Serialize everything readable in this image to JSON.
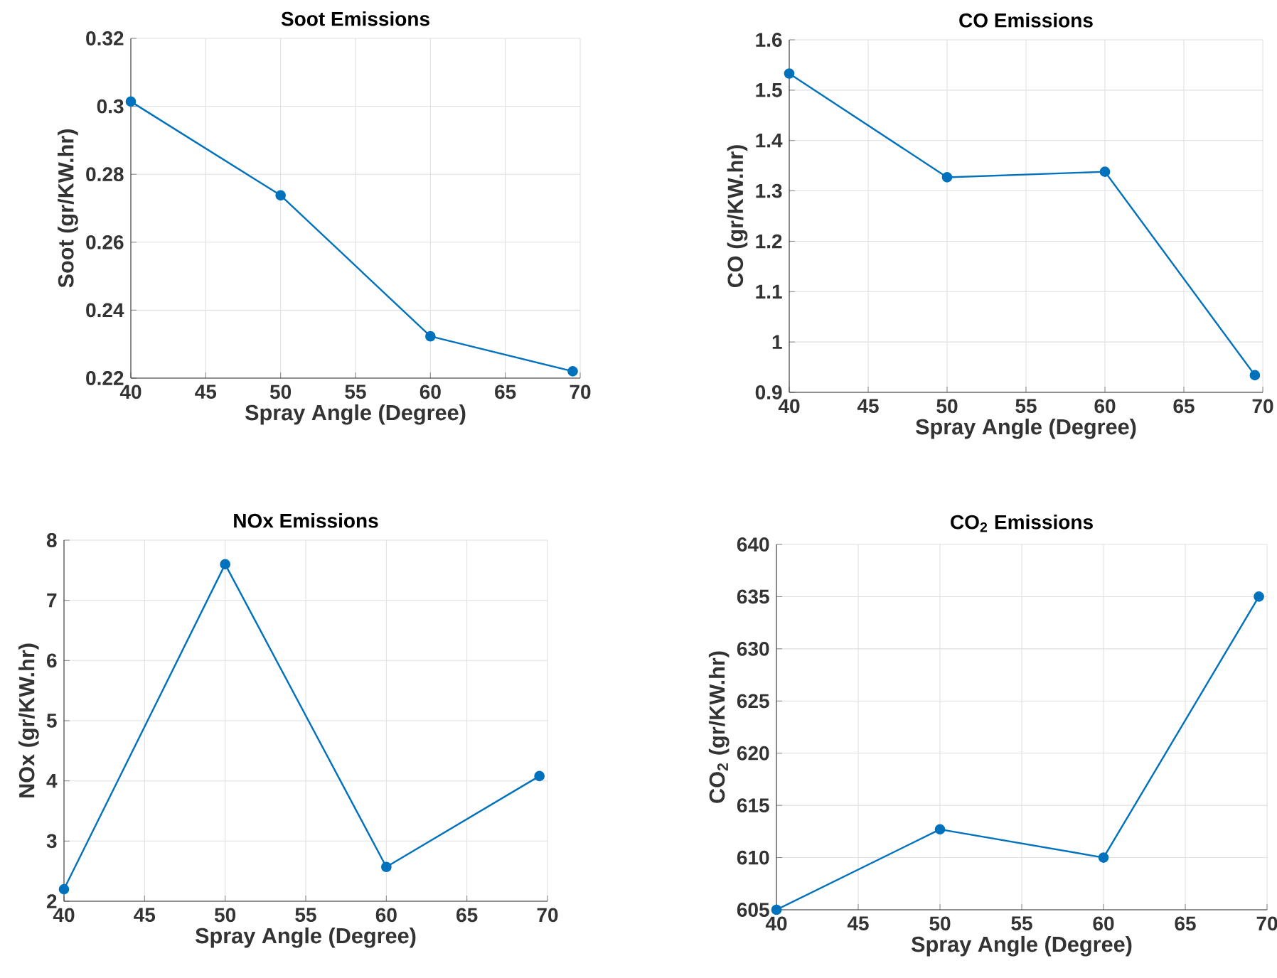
{
  "chart_data": [
    {
      "type": "line",
      "title": "Soot Emissions",
      "xlabel": "Spray Angle (Degree)",
      "ylabel": "Soot (gr/KW.hr)",
      "x": [
        40,
        50,
        60,
        69.5
      ],
      "series": [
        {
          "color": "#0072bd",
          "values": [
            0.3014,
            0.2738,
            0.2323,
            0.222
          ]
        }
      ],
      "xlim": [
        40,
        70
      ],
      "xticks": [
        40,
        45,
        50,
        55,
        60,
        65,
        70
      ],
      "ylim": [
        0.22,
        0.32
      ],
      "yticks": [
        0.22,
        0.24,
        0.26,
        0.28,
        0.3,
        0.32
      ],
      "grid": true,
      "marker": "circle",
      "line_style": "solid"
    },
    {
      "type": "line",
      "title": "CO Emissions",
      "xlabel": "Spray Angle (Degree)",
      "ylabel": "CO (gr/KW.hr)",
      "x": [
        40,
        50,
        60,
        69.5
      ],
      "series": [
        {
          "color": "#0072bd",
          "values": [
            1.533,
            1.327,
            1.338,
            0.934
          ]
        }
      ],
      "xlim": [
        40,
        70
      ],
      "xticks": [
        40,
        45,
        50,
        55,
        60,
        65,
        70
      ],
      "ylim": [
        0.9,
        1.6
      ],
      "yticks": [
        0.9,
        1,
        1.1,
        1.2,
        1.3,
        1.4,
        1.5,
        1.6
      ],
      "grid": true,
      "marker": "circle",
      "line_style": "solid"
    },
    {
      "type": "line",
      "title": "NOx Emissions",
      "xlabel": "Spray Angle (Degree)",
      "ylabel": "NOx (gr/KW.hr)",
      "x": [
        40,
        50,
        60,
        69.5
      ],
      "series": [
        {
          "color": "#0072bd",
          "values": [
            2.2,
            7.6,
            2.57,
            4.08
          ]
        }
      ],
      "xlim": [
        40,
        70
      ],
      "xticks": [
        40,
        45,
        50,
        55,
        60,
        65,
        70
      ],
      "ylim": [
        2,
        8
      ],
      "yticks": [
        2,
        3,
        4,
        5,
        6,
        7,
        8
      ],
      "grid": true,
      "marker": "circle",
      "line_style": "solid"
    },
    {
      "type": "line",
      "title": "CO$_{2}$ Emissions",
      "xlabel": "Spray Angle (Degree)",
      "ylabel": "CO$_{2}$ (gr/KW.hr)",
      "x": [
        40,
        50,
        60,
        69.5
      ],
      "series": [
        {
          "color": "#0072bd",
          "values": [
            605,
            612.7,
            610,
            635
          ]
        }
      ],
      "xlim": [
        40,
        70
      ],
      "xticks": [
        40,
        45,
        50,
        55,
        60,
        65,
        70
      ],
      "ylim": [
        605,
        640
      ],
      "yticks": [
        605,
        610,
        615,
        620,
        625,
        630,
        635,
        640
      ],
      "grid": true,
      "marker": "circle",
      "line_style": "solid"
    }
  ]
}
